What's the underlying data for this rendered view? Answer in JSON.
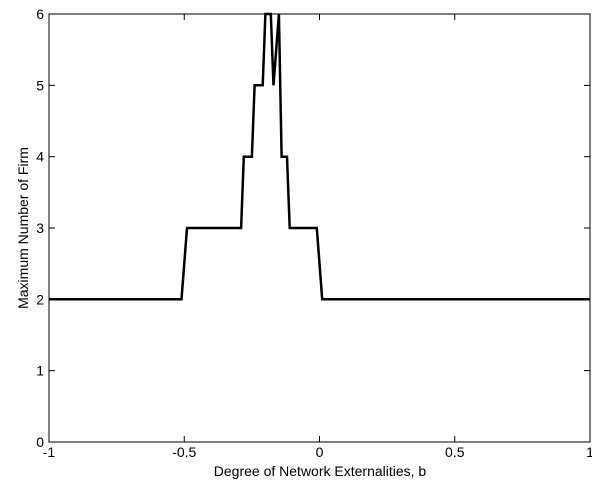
{
  "chart_data": {
    "type": "line",
    "title": "",
    "xlabel": "Degree of Network Externalities, b",
    "ylabel": "Maximum Number of Firm",
    "xlim": [
      -1,
      1
    ],
    "ylim": [
      0,
      6
    ],
    "x_ticks": [
      -1,
      -0.5,
      0,
      0.5,
      1
    ],
    "x_tick_labels": [
      "-1",
      "-0.5",
      "0",
      "0.5",
      "1"
    ],
    "y_ticks": [
      0,
      1,
      2,
      3,
      4,
      5,
      6
    ],
    "y_tick_labels": [
      "0",
      "1",
      "2",
      "3",
      "4",
      "5",
      "6"
    ],
    "grid": false,
    "legend": "none",
    "series": [
      {
        "color": "#000000",
        "x": [
          -1,
          -0.51,
          -0.49,
          -0.29,
          -0.28,
          -0.25,
          -0.24,
          -0.21,
          -0.2,
          -0.18,
          -0.17,
          -0.15,
          -0.14,
          -0.12,
          -0.11,
          -0.09,
          -0.08,
          -0.01,
          0.01,
          1
        ],
        "y": [
          2,
          2,
          3,
          3,
          4,
          4,
          5,
          5,
          6,
          6,
          5,
          6,
          4,
          4,
          3,
          3,
          3,
          3,
          2,
          2
        ]
      }
    ]
  }
}
